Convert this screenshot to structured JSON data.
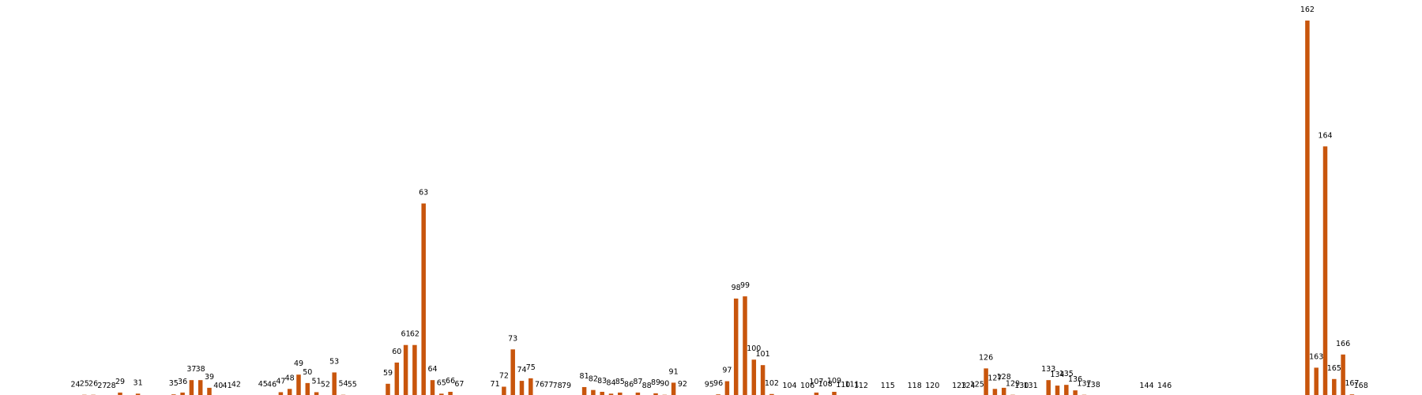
{
  "chart_data": {
    "type": "bar",
    "title": "",
    "xlabel": "",
    "ylabel": "",
    "ylim": [
      0,
      100
    ],
    "grid": false,
    "bar_color": "#c8550c",
    "bars": [
      {
        "label": "24",
        "x": 24,
        "value": 0.3
      },
      {
        "label": "25",
        "x": 25,
        "value": 0.5
      },
      {
        "label": "26",
        "x": 26,
        "value": 0.5
      },
      {
        "label": "27",
        "x": 27,
        "value": 0.0
      },
      {
        "label": "28",
        "x": 28,
        "value": 0.0
      },
      {
        "label": "29",
        "x": 29,
        "value": 1.1
      },
      {
        "label": "31",
        "x": 31,
        "value": 0.8
      },
      {
        "label": "35",
        "x": 35,
        "value": 0.6
      },
      {
        "label": "36",
        "x": 36,
        "value": 1.1
      },
      {
        "label": "37",
        "x": 37,
        "value": 4.5
      },
      {
        "label": "38",
        "x": 38,
        "value": 4.5
      },
      {
        "label": "39",
        "x": 39,
        "value": 2.4
      },
      {
        "label": "40",
        "x": 40,
        "value": 0.0
      },
      {
        "label": "41",
        "x": 41,
        "value": 0.0
      },
      {
        "label": "42",
        "x": 42,
        "value": 0.3
      },
      {
        "label": "45",
        "x": 45,
        "value": 0.4
      },
      {
        "label": "46",
        "x": 46,
        "value": 0.3
      },
      {
        "label": "47",
        "x": 47,
        "value": 1.2
      },
      {
        "label": "48",
        "x": 48,
        "value": 2.1
      },
      {
        "label": "49",
        "x": 49,
        "value": 6.0
      },
      {
        "label": "50",
        "x": 50,
        "value": 3.7
      },
      {
        "label": "51",
        "x": 51,
        "value": 1.2
      },
      {
        "label": "52",
        "x": 52,
        "value": 0.3
      },
      {
        "label": "53",
        "x": 53,
        "value": 6.6
      },
      {
        "label": "54",
        "x": 54,
        "value": 0.5
      },
      {
        "label": "55",
        "x": 55,
        "value": 0.3
      },
      {
        "label": "59",
        "x": 59,
        "value": 3.5
      },
      {
        "label": "60",
        "x": 60,
        "value": 9.3
      },
      {
        "label": "61",
        "x": 61,
        "value": 14.1
      },
      {
        "label": "62",
        "x": 62,
        "value": 14.1
      },
      {
        "label": "63",
        "x": 63,
        "value": 52.8
      },
      {
        "label": "64",
        "x": 64,
        "value": 4.5
      },
      {
        "label": "65",
        "x": 65,
        "value": 0.8
      },
      {
        "label": "66",
        "x": 66,
        "value": 1.3
      },
      {
        "label": "67",
        "x": 67,
        "value": 0.4
      },
      {
        "label": "71",
        "x": 71,
        "value": 0.4
      },
      {
        "label": "72",
        "x": 72,
        "value": 2.7
      },
      {
        "label": "73",
        "x": 73,
        "value": 12.9
      },
      {
        "label": "74",
        "x": 74,
        "value": 4.3
      },
      {
        "label": "75",
        "x": 75,
        "value": 5.0
      },
      {
        "label": "76",
        "x": 76,
        "value": 0.3
      },
      {
        "label": "77",
        "x": 77,
        "value": 0.2
      },
      {
        "label": "78",
        "x": 78,
        "value": 0.0
      },
      {
        "label": "79",
        "x": 79,
        "value": 0.0
      },
      {
        "label": "81",
        "x": 81,
        "value": 2.6
      },
      {
        "label": "82",
        "x": 82,
        "value": 1.8
      },
      {
        "label": "83",
        "x": 83,
        "value": 1.3
      },
      {
        "label": "84",
        "x": 84,
        "value": 0.8
      },
      {
        "label": "85",
        "x": 85,
        "value": 1.1
      },
      {
        "label": "86",
        "x": 86,
        "value": 0.3
      },
      {
        "label": "87",
        "x": 87,
        "value": 1.1
      },
      {
        "label": "88",
        "x": 88,
        "value": 0.0
      },
      {
        "label": "89",
        "x": 89,
        "value": 0.9
      },
      {
        "label": "90",
        "x": 90,
        "value": 0.5
      },
      {
        "label": "91",
        "x": 91,
        "value": 3.8
      },
      {
        "label": "92",
        "x": 92,
        "value": 0.4
      },
      {
        "label": "95",
        "x": 95,
        "value": 0.3
      },
      {
        "label": "96",
        "x": 96,
        "value": 0.6
      },
      {
        "label": "97",
        "x": 97,
        "value": 4.2
      },
      {
        "label": "98",
        "x": 98,
        "value": 26.8
      },
      {
        "label": "99",
        "x": 99,
        "value": 27.4
      },
      {
        "label": "100",
        "x": 100,
        "value": 10.1
      },
      {
        "label": "101",
        "x": 101,
        "value": 8.6
      },
      {
        "label": "102",
        "x": 102,
        "value": 0.7
      },
      {
        "label": "104",
        "x": 104,
        "value": 0.0
      },
      {
        "label": "106",
        "x": 106,
        "value": 0.0
      },
      {
        "label": "107",
        "x": 107,
        "value": 1.1
      },
      {
        "label": "108",
        "x": 108,
        "value": 0.4
      },
      {
        "label": "109",
        "x": 109,
        "value": 1.3
      },
      {
        "label": "110",
        "x": 110,
        "value": 0.2
      },
      {
        "label": "111",
        "x": 111,
        "value": 0.3
      },
      {
        "label": "112",
        "x": 112,
        "value": 0.0
      },
      {
        "label": "115",
        "x": 115,
        "value": 0.0
      },
      {
        "label": "118",
        "x": 118,
        "value": 0.0
      },
      {
        "label": "120",
        "x": 120,
        "value": 0.0
      },
      {
        "label": "123",
        "x": 123,
        "value": 0.0
      },
      {
        "label": "124",
        "x": 124,
        "value": 0.0
      },
      {
        "label": "125",
        "x": 125,
        "value": 0.3
      },
      {
        "label": "126",
        "x": 126,
        "value": 7.7
      },
      {
        "label": "127",
        "x": 127,
        "value": 2.1
      },
      {
        "label": "128",
        "x": 128,
        "value": 2.4
      },
      {
        "label": "129",
        "x": 129,
        "value": 0.5
      },
      {
        "label": "130",
        "x": 130,
        "value": 0.0
      },
      {
        "label": "131",
        "x": 131,
        "value": 0.0
      },
      {
        "label": "133",
        "x": 133,
        "value": 4.5
      },
      {
        "label": "134",
        "x": 134,
        "value": 3.0
      },
      {
        "label": "135",
        "x": 135,
        "value": 3.2
      },
      {
        "label": "136",
        "x": 136,
        "value": 1.7
      },
      {
        "label": "137",
        "x": 137,
        "value": 0.5
      },
      {
        "label": "138",
        "x": 138,
        "value": 0.2
      },
      {
        "label": "144",
        "x": 144,
        "value": 0.0
      },
      {
        "label": "146",
        "x": 146,
        "value": 0.0
      },
      {
        "label": "162",
        "x": 162,
        "value": 102.8
      },
      {
        "label": "163",
        "x": 163,
        "value": 7.9
      },
      {
        "label": "164",
        "x": 164,
        "value": 68.4
      },
      {
        "label": "165",
        "x": 165,
        "value": 4.8
      },
      {
        "label": "166",
        "x": 166,
        "value": 11.5
      },
      {
        "label": "167",
        "x": 167,
        "value": 0.6
      },
      {
        "label": "168",
        "x": 168,
        "value": 0.0
      }
    ]
  }
}
